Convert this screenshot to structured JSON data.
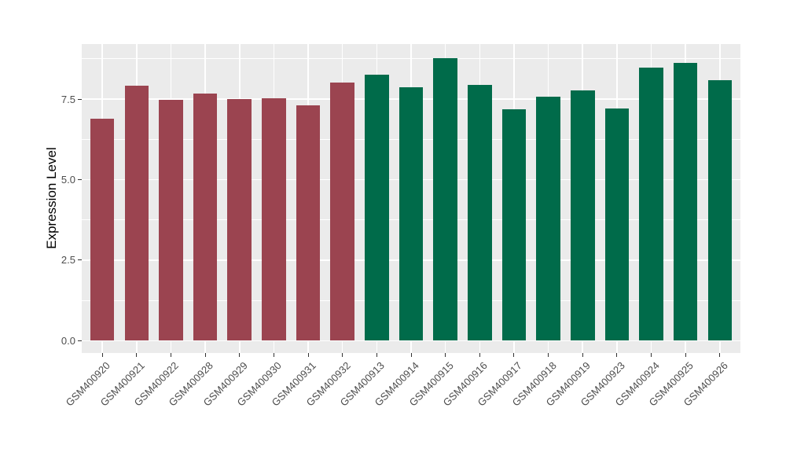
{
  "chart_data": {
    "type": "bar",
    "title": "",
    "xlabel": "",
    "ylabel": "Expression Level",
    "legend": "none",
    "grid": true,
    "panel_bg": "#EBEBEB",
    "grid_color": "#FFFFFF",
    "axis_text_color": "#4D4D4D",
    "tick_color": "#333333",
    "bar_width_ratio": 0.7,
    "ylim": [
      -0.38,
      9.21
    ],
    "y_ticks": {
      "values": [
        0.0,
        2.5,
        5.0,
        7.5
      ],
      "labels": [
        "0.0",
        "2.5",
        "5.0",
        "7.5"
      ]
    },
    "y_minor_ticks": [
      1.25,
      3.75,
      6.25,
      8.75
    ],
    "group_colors": {
      "groupA": "#9B4450",
      "groupB": "#006B4A"
    },
    "categories": [
      "GSM400920",
      "GSM400921",
      "GSM400922",
      "GSM400928",
      "GSM400929",
      "GSM400930",
      "GSM400931",
      "GSM400932",
      "GSM400913",
      "GSM400914",
      "GSM400915",
      "GSM400916",
      "GSM400917",
      "GSM400918",
      "GSM400919",
      "GSM400923",
      "GSM400924",
      "GSM400925",
      "GSM400926"
    ],
    "values": [
      6.9,
      7.91,
      7.47,
      7.68,
      7.51,
      7.53,
      7.31,
      8.01,
      8.25,
      7.87,
      8.76,
      7.93,
      7.19,
      7.58,
      7.76,
      7.21,
      8.47,
      8.62,
      8.09
    ],
    "groups": [
      "groupA",
      "groupA",
      "groupA",
      "groupA",
      "groupA",
      "groupA",
      "groupA",
      "groupA",
      "groupB",
      "groupB",
      "groupB",
      "groupB",
      "groupB",
      "groupB",
      "groupB",
      "groupB",
      "groupB",
      "groupB",
      "groupB"
    ]
  }
}
